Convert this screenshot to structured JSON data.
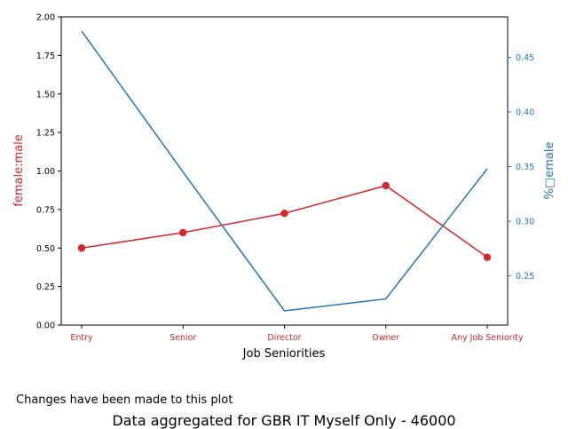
{
  "chart_data": {
    "type": "line",
    "categories": [
      "Entry",
      "Senior",
      "Director",
      "Owner",
      "Any Job Seniority"
    ],
    "xlabel": "Job Seniorities",
    "series": [
      {
        "name": "female:male",
        "axis": "left",
        "color": "#d62728",
        "marker": "circle",
        "values": [
          0.5,
          0.6,
          0.725,
          0.905,
          0.44
        ]
      },
      {
        "name": "%female",
        "axis": "right",
        "color": "#1f77b4",
        "marker": "none",
        "values": [
          0.474,
          0.345,
          0.218,
          0.229,
          0.348
        ]
      }
    ],
    "left_axis": {
      "label": "female:male",
      "color": "#d62728",
      "ylim": [
        0,
        2.0
      ],
      "ticks": [
        "0.00",
        "0.25",
        "0.50",
        "0.75",
        "1.00",
        "1.25",
        "1.50",
        "1.75",
        "2.00"
      ]
    },
    "right_axis": {
      "label": "%□emale",
      "color": "#1f77b4",
      "ylim": [
        0.205,
        0.487
      ],
      "ticks": [
        "0.25",
        "0.30",
        "0.35",
        "0.40",
        "0.45"
      ]
    },
    "x_tick_color": "#d62728",
    "grid": false
  },
  "note": "Changes have been made to this plot",
  "footer_title": "Data aggregated for GBR IT Myself Only - 46000"
}
